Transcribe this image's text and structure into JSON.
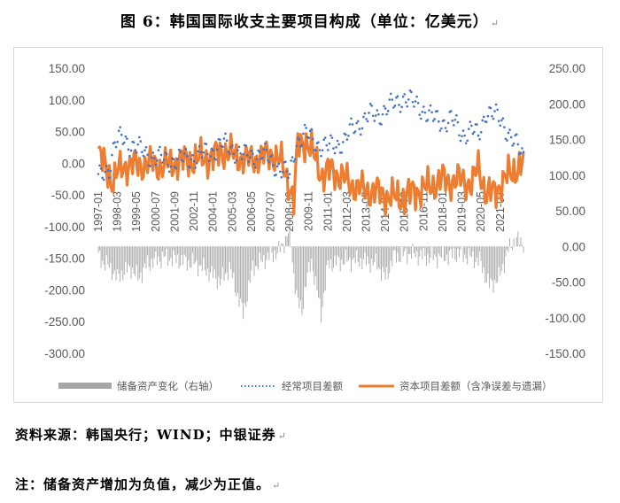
{
  "figure": {
    "title": "图 6：韩国国际收支主要项目构成（单位：亿美元）",
    "title_mark": "↵"
  },
  "footer": {
    "source": "资料来源：韩国央行；WIND；中银证券",
    "source_mark": "↵",
    "note": "注：储备资产增加为负值，减少为正值。",
    "note_mark": "↵"
  },
  "colors": {
    "reserve": "#a6a6a6",
    "current": "#4472c4",
    "capital": "#ed7d31"
  },
  "chart_data": {
    "type": "bar+line",
    "x_start": "1997-01",
    "x_end": "2022-12",
    "x_tick_labels": [
      "1997-01",
      "1998-03",
      "1999-05",
      "2000-07",
      "2001-09",
      "2002-11",
      "2004-01",
      "2005-03",
      "2006-05",
      "2007-07",
      "2008-09",
      "2009-11",
      "2011-01",
      "2012-03",
      "2013-05",
      "2014-07",
      "2015-09",
      "2016-11",
      "2018-01",
      "2019-03",
      "2020-05",
      "2021-07"
    ],
    "y_left": {
      "min": -300,
      "max": 150,
      "step": 50,
      "tick_labels": [
        "150.00",
        "100.00",
        "50.00",
        "0.00",
        "-50.00",
        "-100.00",
        "-150.00",
        "-200.00",
        "-250.00",
        "-300.00"
      ]
    },
    "y_right": {
      "min": -150,
      "max": 250,
      "step": 50,
      "tick_labels": [
        "250.00",
        "200.00",
        "150.00",
        "100.00",
        "50.00",
        "0.00",
        "-50.00",
        "-100.00",
        "-150.00"
      ]
    },
    "series": [
      {
        "name": "储备资产变化（右轴）",
        "type": "bar",
        "axis": "right",
        "anchors": [
          [
            "1997-01",
            -15
          ],
          [
            "1997-12",
            -35
          ],
          [
            "1998-03",
            -45
          ],
          [
            "1998-06",
            -38
          ],
          [
            "1999-01",
            -30
          ],
          [
            "1999-06",
            -45
          ],
          [
            "2000-01",
            -25
          ],
          [
            "2001-01",
            -15
          ],
          [
            "2002-01",
            -20
          ],
          [
            "2003-01",
            -25
          ],
          [
            "2004-01",
            -40
          ],
          [
            "2004-06",
            -50
          ],
          [
            "2005-01",
            -30
          ],
          [
            "2005-11",
            -95
          ],
          [
            "2006-06",
            -30
          ],
          [
            "2007-01",
            -20
          ],
          [
            "2008-02",
            -5
          ],
          [
            "2008-06",
            10
          ],
          [
            "2008-09",
            25
          ],
          [
            "2008-12",
            -40
          ],
          [
            "2009-03",
            -80
          ],
          [
            "2009-06",
            -90
          ],
          [
            "2009-09",
            -50
          ],
          [
            "2010-01",
            -20
          ],
          [
            "2010-08",
            -95
          ],
          [
            "2011-01",
            -25
          ],
          [
            "2012-01",
            -20
          ],
          [
            "2013-01",
            -20
          ],
          [
            "2014-01",
            -25
          ],
          [
            "2014-07",
            -45
          ],
          [
            "2015-01",
            -15
          ],
          [
            "2016-01",
            -10
          ],
          [
            "2017-01",
            -15
          ],
          [
            "2018-01",
            -15
          ],
          [
            "2019-01",
            -10
          ],
          [
            "2020-04",
            -20
          ],
          [
            "2020-11",
            -55
          ],
          [
            "2021-06",
            -45
          ],
          [
            "2022-01",
            -5
          ],
          [
            "2022-06",
            10
          ],
          [
            "2022-12",
            5
          ]
        ]
      },
      {
        "name": "经常项目差额",
        "type": "line",
        "style": "dotted",
        "axis": "left",
        "anchors": [
          [
            "1997-01",
            -25
          ],
          [
            "1997-09",
            -5
          ],
          [
            "1998-01",
            30
          ],
          [
            "1998-06",
            40
          ],
          [
            "1999-01",
            30
          ],
          [
            "1999-12",
            15
          ],
          [
            "2000-06",
            10
          ],
          [
            "2001-01",
            5
          ],
          [
            "2002-01",
            5
          ],
          [
            "2003-01",
            10
          ],
          [
            "2004-01",
            20
          ],
          [
            "2004-07",
            30
          ],
          [
            "2005-01",
            25
          ],
          [
            "2006-01",
            10
          ],
          [
            "2007-01",
            15
          ],
          [
            "2008-03",
            -10
          ],
          [
            "2008-09",
            -20
          ],
          [
            "2009-02",
            35
          ],
          [
            "2009-09",
            45
          ],
          [
            "2010-06",
            30
          ],
          [
            "2011-01",
            25
          ],
          [
            "2012-01",
            35
          ],
          [
            "2012-07",
            55
          ],
          [
            "2013-01",
            65
          ],
          [
            "2013-07",
            75
          ],
          [
            "2014-01",
            75
          ],
          [
            "2014-07",
            85
          ],
          [
            "2015-03",
            95
          ],
          [
            "2015-09",
            105
          ],
          [
            "2016-03",
            95
          ],
          [
            "2016-11",
            85
          ],
          [
            "2017-06",
            70
          ],
          [
            "2018-01",
            65
          ],
          [
            "2018-07",
            70
          ],
          [
            "2019-03",
            45
          ],
          [
            "2019-10",
            55
          ],
          [
            "2020-03",
            40
          ],
          [
            "2020-09",
            85
          ],
          [
            "2021-03",
            75
          ],
          [
            "2021-08",
            65
          ],
          [
            "2022-01",
            50
          ],
          [
            "2022-06",
            30
          ],
          [
            "2022-12",
            10
          ]
        ]
      },
      {
        "name": "资本项目差额（含净误差与遗漏）",
        "type": "line",
        "style": "solid",
        "axis": "left",
        "anchors": [
          [
            "1997-01",
            15
          ],
          [
            "1997-12",
            -30
          ],
          [
            "1998-03",
            -15
          ],
          [
            "1998-08",
            -5
          ],
          [
            "1999-01",
            0
          ],
          [
            "1999-06",
            -5
          ],
          [
            "2000-01",
            0
          ],
          [
            "2001-01",
            -5
          ],
          [
            "2002-01",
            5
          ],
          [
            "2003-01",
            5
          ],
          [
            "2004-01",
            10
          ],
          [
            "2004-08",
            20
          ],
          [
            "2005-01",
            15
          ],
          [
            "2006-01",
            5
          ],
          [
            "2007-01",
            10
          ],
          [
            "2007-08",
            15
          ],
          [
            "2008-03",
            0
          ],
          [
            "2008-09",
            -35
          ],
          [
            "2008-12",
            -60
          ],
          [
            "2009-03",
            30
          ],
          [
            "2009-09",
            35
          ],
          [
            "2010-03",
            10
          ],
          [
            "2010-09",
            -20
          ],
          [
            "2011-03",
            -10
          ],
          [
            "2012-01",
            -25
          ],
          [
            "2012-07",
            -35
          ],
          [
            "2013-01",
            -40
          ],
          [
            "2013-07",
            -45
          ],
          [
            "2014-01",
            -45
          ],
          [
            "2014-07",
            -50
          ],
          [
            "2015-03",
            -55
          ],
          [
            "2015-09",
            -55
          ],
          [
            "2016-03",
            -45
          ],
          [
            "2016-11",
            -40
          ],
          [
            "2017-06",
            -35
          ],
          [
            "2018-01",
            -25
          ],
          [
            "2018-07",
            -30
          ],
          [
            "2019-03",
            -25
          ],
          [
            "2019-10",
            -35
          ],
          [
            "2020-03",
            -5
          ],
          [
            "2020-09",
            -50
          ],
          [
            "2021-03",
            -45
          ],
          [
            "2021-08",
            -30
          ],
          [
            "2022-01",
            -20
          ],
          [
            "2022-06",
            -10
          ],
          [
            "2022-12",
            0
          ]
        ]
      }
    ],
    "legend_position": "bottom",
    "grid": false
  }
}
